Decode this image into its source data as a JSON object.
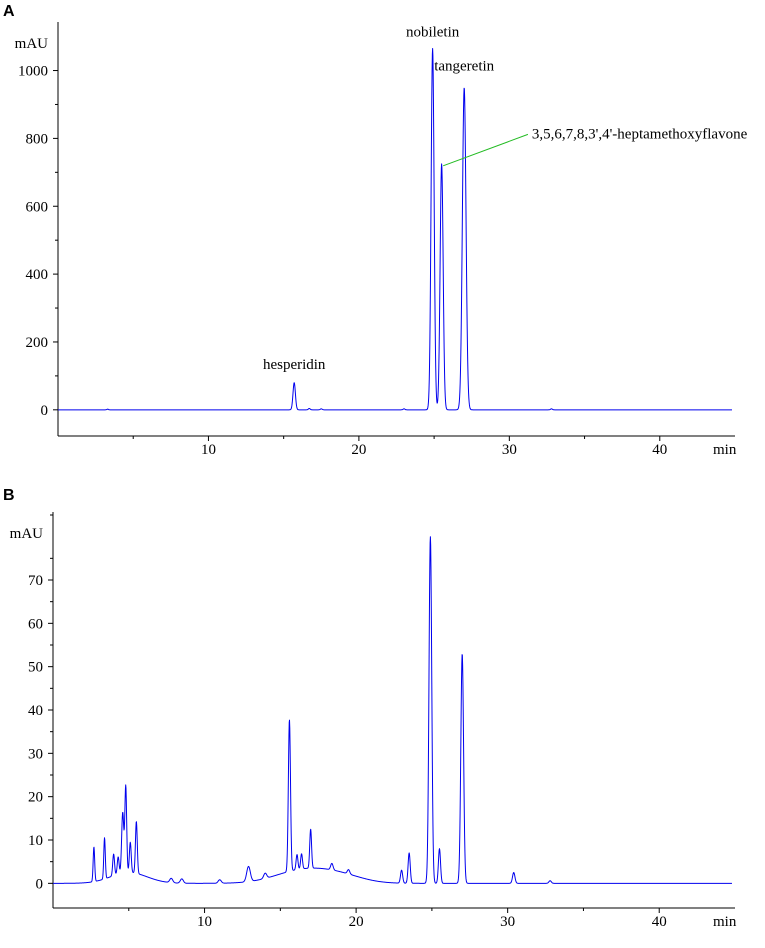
{
  "colors": {
    "trace": "#0000ee",
    "leader": "#22bb22",
    "axis": "#000000",
    "background": "#ffffff"
  },
  "chart_data": [
    {
      "panel": "A",
      "type": "line",
      "xlabel": "min",
      "ylabel": "mAU",
      "xlim": [
        0,
        45
      ],
      "ylim": [
        -30,
        1090
      ],
      "xticks": [
        10,
        20,
        30,
        40
      ],
      "yticks": [
        0,
        200,
        400,
        600,
        800,
        1000
      ],
      "grid": false,
      "baseline": 0,
      "peaks": [
        {
          "rt": 3.3,
          "height": 2,
          "width": 0.05
        },
        {
          "rt": 15.7,
          "height": 80,
          "width": 0.08
        },
        {
          "rt": 16.7,
          "height": 4,
          "width": 0.06
        },
        {
          "rt": 17.5,
          "height": 3,
          "width": 0.06
        },
        {
          "rt": 23.0,
          "height": 3,
          "width": 0.06
        },
        {
          "rt": 24.9,
          "height": 1065,
          "width": 0.1
        },
        {
          "rt": 25.5,
          "height": 725,
          "width": 0.1
        },
        {
          "rt": 27.0,
          "height": 950,
          "width": 0.12
        },
        {
          "rt": 32.8,
          "height": 3,
          "width": 0.06
        }
      ],
      "annotations": [
        {
          "text": "hesperidin",
          "x": 15.7,
          "y": 120
        },
        {
          "text": "nobiletin",
          "x": 24.9,
          "y": 1100
        },
        {
          "text": "tangeretin",
          "x": 27.0,
          "y": 1000
        },
        {
          "text": "3,5,6,7,8,3',4'-heptamethoxyflavone",
          "x": 31.5,
          "y": 800,
          "points_to_rt": 25.6,
          "points_to_y": 725
        }
      ]
    },
    {
      "panel": "B",
      "type": "line",
      "xlabel": "min",
      "ylabel": "mAU",
      "xlim": [
        0,
        45
      ],
      "ylim": [
        -2,
        85
      ],
      "xticks": [
        10,
        20,
        30,
        40
      ],
      "yticks": [
        0,
        10,
        20,
        30,
        40,
        50,
        60,
        70
      ],
      "grid": false,
      "baseline": 0,
      "hump": [
        {
          "center": 5.0,
          "height": 2.5,
          "width": 1.2
        },
        {
          "center": 16.5,
          "height": 3.0,
          "width": 1.8
        },
        {
          "center": 19.0,
          "height": 1.5,
          "width": 1.5
        }
      ],
      "peaks": [
        {
          "rt": 2.7,
          "height": 8,
          "width": 0.05
        },
        {
          "rt": 3.4,
          "height": 9.5,
          "width": 0.05
        },
        {
          "rt": 4.0,
          "height": 5,
          "width": 0.06
        },
        {
          "rt": 4.3,
          "height": 4,
          "width": 0.06
        },
        {
          "rt": 4.6,
          "height": 14,
          "width": 0.07
        },
        {
          "rt": 4.8,
          "height": 20,
          "width": 0.06
        },
        {
          "rt": 5.1,
          "height": 7,
          "width": 0.06
        },
        {
          "rt": 5.5,
          "height": 12,
          "width": 0.06
        },
        {
          "rt": 7.8,
          "height": 1,
          "width": 0.1
        },
        {
          "rt": 8.5,
          "height": 1,
          "width": 0.1
        },
        {
          "rt": 11.0,
          "height": 0.8,
          "width": 0.1
        },
        {
          "rt": 12.9,
          "height": 3.5,
          "width": 0.12
        },
        {
          "rt": 14.0,
          "height": 1.2,
          "width": 0.1
        },
        {
          "rt": 15.6,
          "height": 35,
          "width": 0.07
        },
        {
          "rt": 16.1,
          "height": 3.5,
          "width": 0.06
        },
        {
          "rt": 16.4,
          "height": 3.5,
          "width": 0.06
        },
        {
          "rt": 17.0,
          "height": 9,
          "width": 0.06
        },
        {
          "rt": 18.4,
          "height": 1.5,
          "width": 0.08
        },
        {
          "rt": 19.5,
          "height": 1,
          "width": 0.08
        },
        {
          "rt": 23.0,
          "height": 3,
          "width": 0.07
        },
        {
          "rt": 23.5,
          "height": 7,
          "width": 0.07
        },
        {
          "rt": 24.9,
          "height": 80,
          "width": 0.09
        },
        {
          "rt": 25.5,
          "height": 8,
          "width": 0.07
        },
        {
          "rt": 27.0,
          "height": 53,
          "width": 0.09
        },
        {
          "rt": 30.4,
          "height": 2.5,
          "width": 0.08
        },
        {
          "rt": 32.8,
          "height": 0.6,
          "width": 0.08
        }
      ]
    }
  ]
}
